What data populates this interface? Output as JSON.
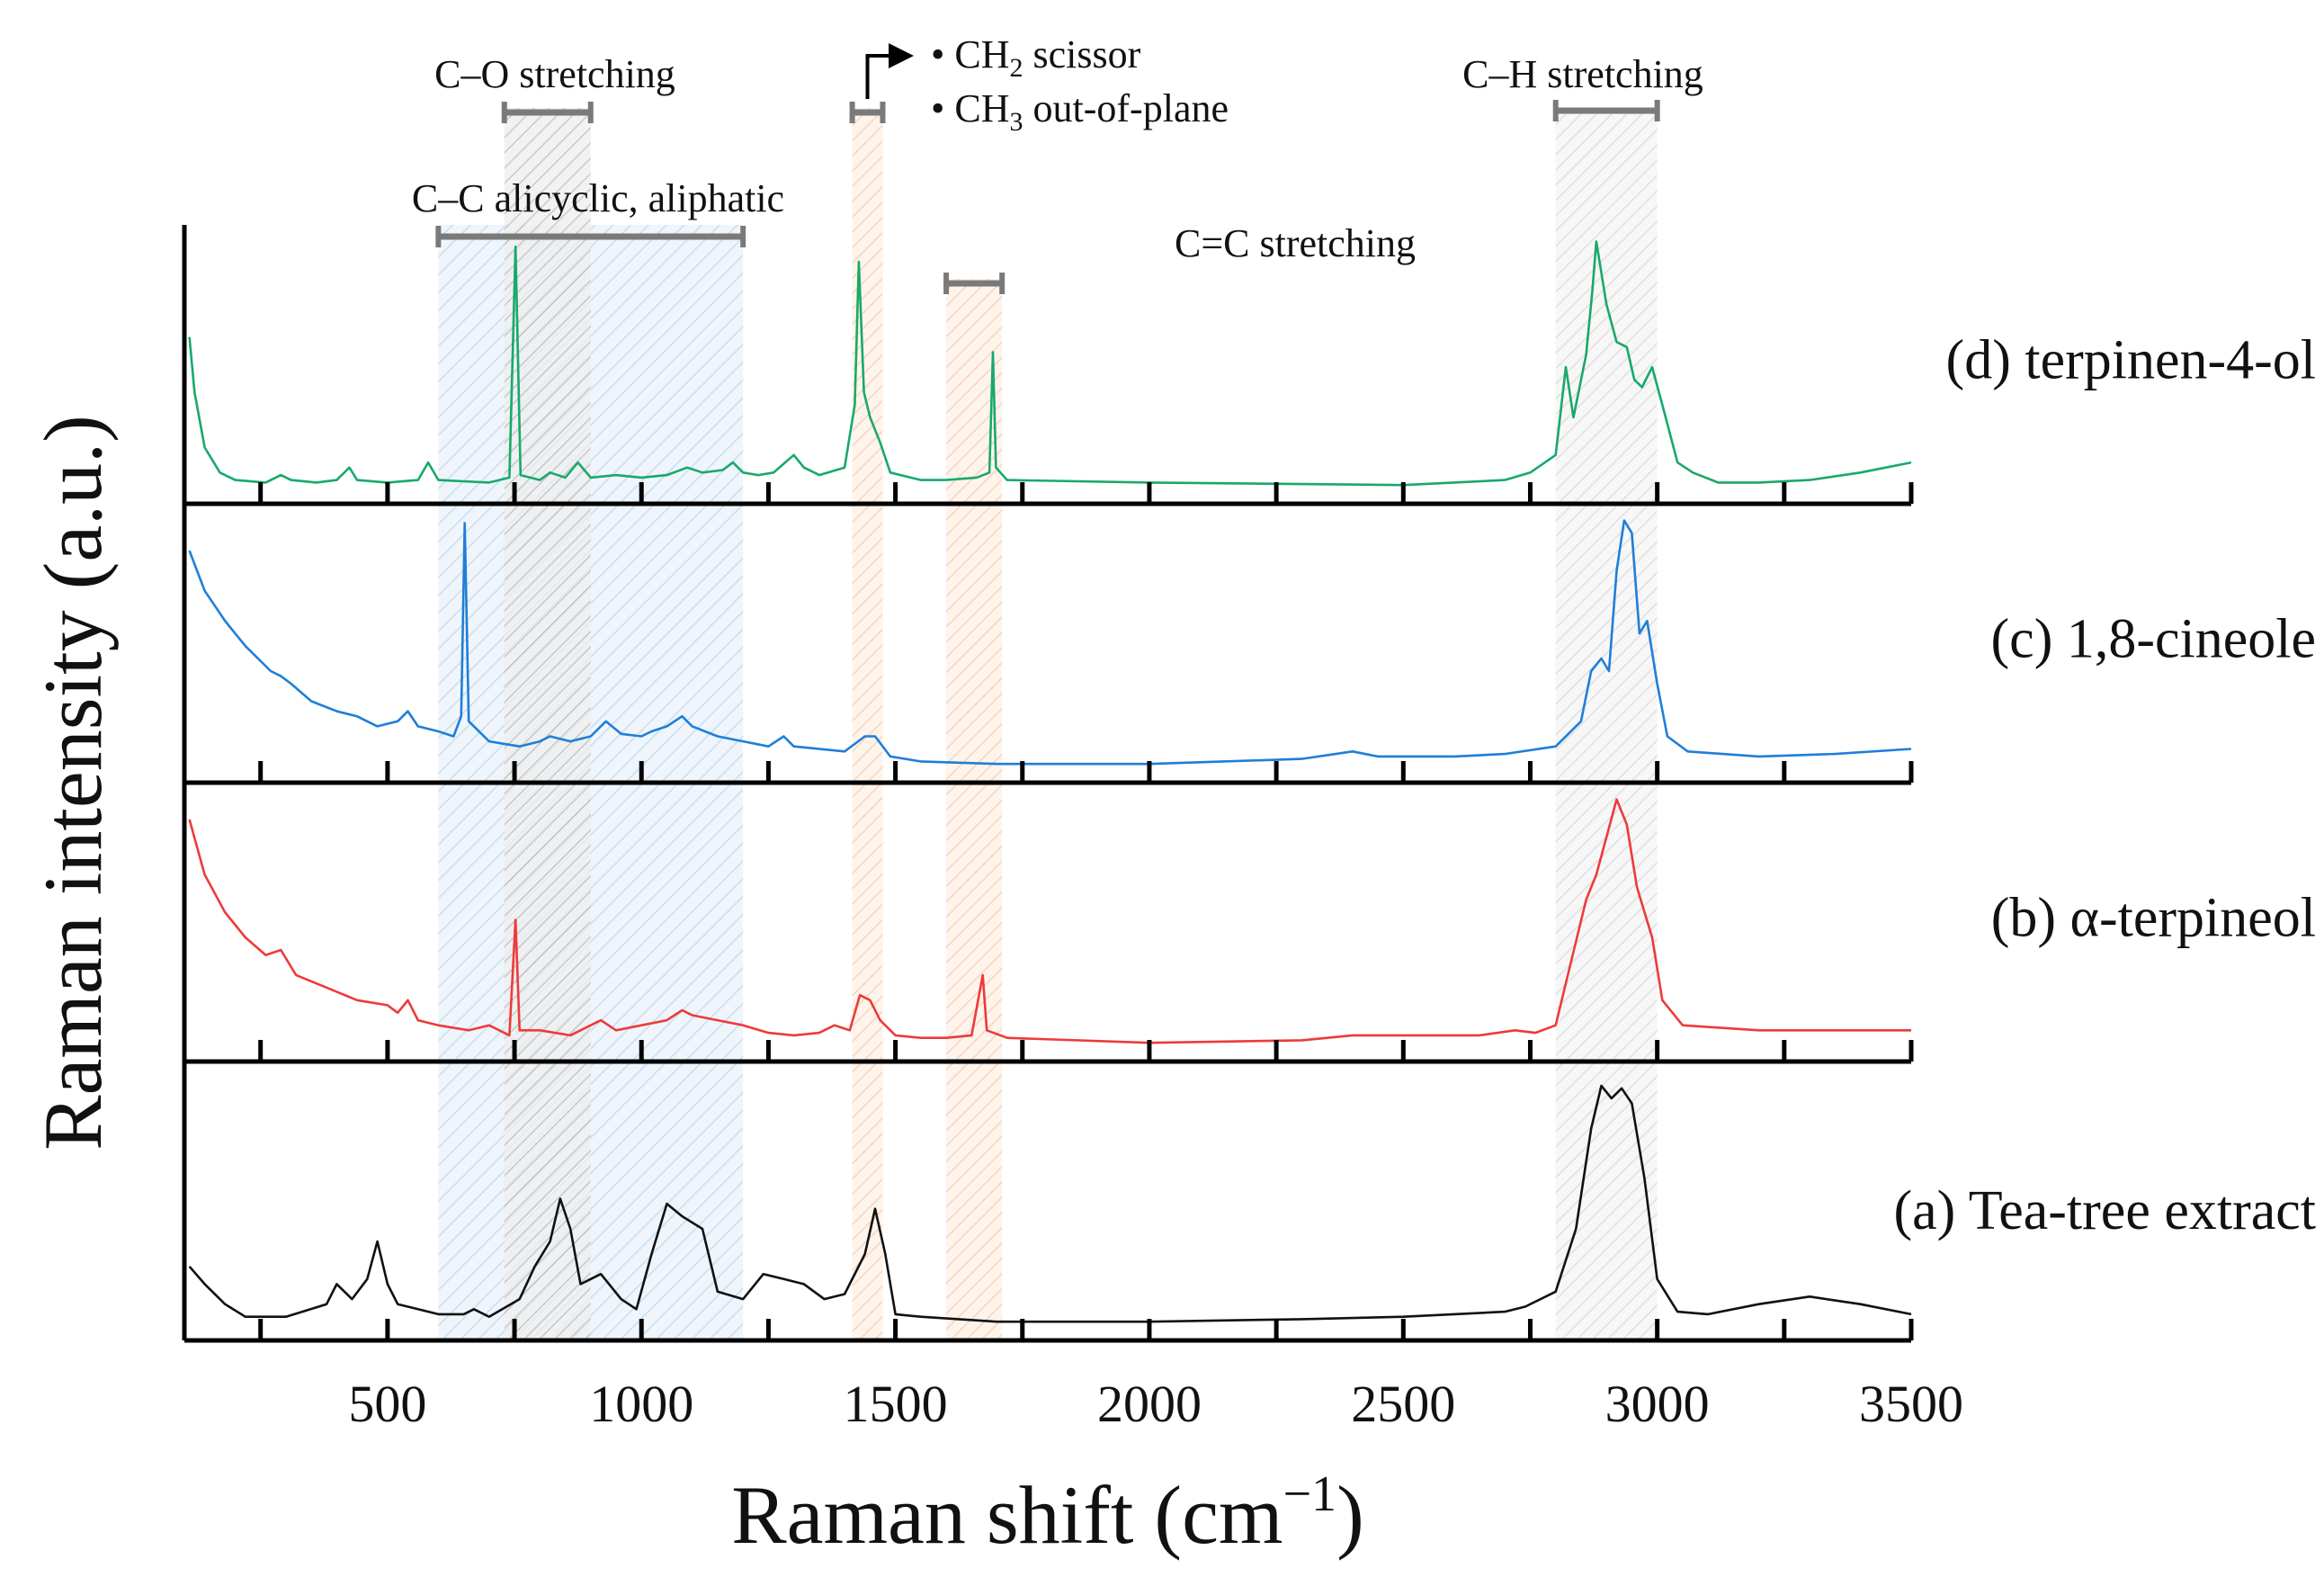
{
  "chart_data": {
    "type": "line",
    "title": "",
    "xlabel": "Raman shift (cm",
    "xlabel_sup": "−1",
    "xlabel_close": ")",
    "ylabel": "Raman intensity (a.u.)",
    "xlim": [
      100,
      3500
    ],
    "xticks": [
      500,
      1000,
      1500,
      2000,
      2500,
      3000,
      3500
    ],
    "minor_ticks": [
      250,
      500,
      750,
      1000,
      1250,
      1500,
      1750,
      2000,
      2250,
      2500,
      2750,
      3000,
      3250,
      3500
    ],
    "panels": [
      {
        "id": "d",
        "label": "(d) terpinen-4-ol",
        "color": "#18a96b",
        "baseline": 0.02,
        "points": [
          [
            110,
            0.62
          ],
          [
            120,
            0.4
          ],
          [
            140,
            0.18
          ],
          [
            170,
            0.08
          ],
          [
            200,
            0.05
          ],
          [
            260,
            0.04
          ],
          [
            290,
            0.07
          ],
          [
            310,
            0.05
          ],
          [
            360,
            0.04
          ],
          [
            400,
            0.05
          ],
          [
            425,
            0.1
          ],
          [
            440,
            0.05
          ],
          [
            500,
            0.04
          ],
          [
            560,
            0.05
          ],
          [
            580,
            0.12
          ],
          [
            600,
            0.05
          ],
          [
            700,
            0.04
          ],
          [
            740,
            0.06
          ],
          [
            752,
            0.98
          ],
          [
            762,
            0.07
          ],
          [
            800,
            0.05
          ],
          [
            820,
            0.08
          ],
          [
            850,
            0.06
          ],
          [
            875,
            0.12
          ],
          [
            900,
            0.06
          ],
          [
            950,
            0.07
          ],
          [
            1000,
            0.06
          ],
          [
            1050,
            0.07
          ],
          [
            1090,
            0.1
          ],
          [
            1120,
            0.08
          ],
          [
            1160,
            0.09
          ],
          [
            1180,
            0.12
          ],
          [
            1200,
            0.08
          ],
          [
            1230,
            0.07
          ],
          [
            1260,
            0.08
          ],
          [
            1300,
            0.15
          ],
          [
            1320,
            0.1
          ],
          [
            1350,
            0.07
          ],
          [
            1400,
            0.1
          ],
          [
            1420,
            0.35
          ],
          [
            1428,
            0.92
          ],
          [
            1438,
            0.4
          ],
          [
            1450,
            0.3
          ],
          [
            1470,
            0.2
          ],
          [
            1490,
            0.08
          ],
          [
            1550,
            0.05
          ],
          [
            1600,
            0.05
          ],
          [
            1660,
            0.06
          ],
          [
            1685,
            0.08
          ],
          [
            1692,
            0.56
          ],
          [
            1698,
            0.1
          ],
          [
            1720,
            0.05
          ],
          [
            2000,
            0.04
          ],
          [
            2500,
            0.03
          ],
          [
            2700,
            0.05
          ],
          [
            2750,
            0.08
          ],
          [
            2800,
            0.15
          ],
          [
            2820,
            0.5
          ],
          [
            2835,
            0.3
          ],
          [
            2860,
            0.55
          ],
          [
            2872,
            0.8
          ],
          [
            2880,
            1.0
          ],
          [
            2900,
            0.75
          ],
          [
            2920,
            0.6
          ],
          [
            2940,
            0.58
          ],
          [
            2955,
            0.45
          ],
          [
            2970,
            0.42
          ],
          [
            2990,
            0.5
          ],
          [
            3010,
            0.35
          ],
          [
            3040,
            0.12
          ],
          [
            3070,
            0.08
          ],
          [
            3120,
            0.04
          ],
          [
            3200,
            0.04
          ],
          [
            3300,
            0.05
          ],
          [
            3400,
            0.08
          ],
          [
            3500,
            0.12
          ]
        ]
      },
      {
        "id": "c",
        "label": "(c) 1,8-cineole",
        "color": "#1e7fd8",
        "baseline": 0.02,
        "points": [
          [
            110,
            0.88
          ],
          [
            140,
            0.72
          ],
          [
            180,
            0.6
          ],
          [
            220,
            0.5
          ],
          [
            270,
            0.4
          ],
          [
            290,
            0.38
          ],
          [
            310,
            0.35
          ],
          [
            350,
            0.28
          ],
          [
            400,
            0.24
          ],
          [
            440,
            0.22
          ],
          [
            480,
            0.18
          ],
          [
            520,
            0.2
          ],
          [
            540,
            0.24
          ],
          [
            560,
            0.18
          ],
          [
            600,
            0.16
          ],
          [
            630,
            0.14
          ],
          [
            645,
            0.22
          ],
          [
            652,
            0.99
          ],
          [
            660,
            0.2
          ],
          [
            700,
            0.12
          ],
          [
            760,
            0.1
          ],
          [
            800,
            0.12
          ],
          [
            820,
            0.14
          ],
          [
            860,
            0.12
          ],
          [
            900,
            0.14
          ],
          [
            930,
            0.2
          ],
          [
            960,
            0.15
          ],
          [
            1000,
            0.14
          ],
          [
            1020,
            0.16
          ],
          [
            1050,
            0.18
          ],
          [
            1080,
            0.22
          ],
          [
            1100,
            0.18
          ],
          [
            1150,
            0.14
          ],
          [
            1200,
            0.12
          ],
          [
            1250,
            0.1
          ],
          [
            1280,
            0.14
          ],
          [
            1300,
            0.1
          ],
          [
            1400,
            0.08
          ],
          [
            1440,
            0.14
          ],
          [
            1460,
            0.14
          ],
          [
            1490,
            0.06
          ],
          [
            1550,
            0.04
          ],
          [
            1700,
            0.03
          ],
          [
            2000,
            0.03
          ],
          [
            2300,
            0.05
          ],
          [
            2400,
            0.08
          ],
          [
            2450,
            0.06
          ],
          [
            2600,
            0.06
          ],
          [
            2700,
            0.07
          ],
          [
            2800,
            0.1
          ],
          [
            2850,
            0.2
          ],
          [
            2870,
            0.4
          ],
          [
            2890,
            0.45
          ],
          [
            2905,
            0.4
          ],
          [
            2920,
            0.8
          ],
          [
            2935,
            1.0
          ],
          [
            2950,
            0.95
          ],
          [
            2965,
            0.55
          ],
          [
            2980,
            0.6
          ],
          [
            3000,
            0.35
          ],
          [
            3020,
            0.14
          ],
          [
            3060,
            0.08
          ],
          [
            3200,
            0.06
          ],
          [
            3350,
            0.07
          ],
          [
            3500,
            0.09
          ]
        ]
      },
      {
        "id": "b",
        "label": "(b) α-terpineol",
        "color": "#ee3a3a",
        "baseline": 0.02,
        "points": [
          [
            110,
            0.92
          ],
          [
            140,
            0.7
          ],
          [
            180,
            0.55
          ],
          [
            220,
            0.45
          ],
          [
            260,
            0.38
          ],
          [
            290,
            0.4
          ],
          [
            320,
            0.3
          ],
          [
            380,
            0.25
          ],
          [
            440,
            0.2
          ],
          [
            500,
            0.18
          ],
          [
            520,
            0.15
          ],
          [
            540,
            0.2
          ],
          [
            560,
            0.12
          ],
          [
            600,
            0.1
          ],
          [
            660,
            0.08
          ],
          [
            700,
            0.1
          ],
          [
            740,
            0.06
          ],
          [
            752,
            0.52
          ],
          [
            760,
            0.08
          ],
          [
            800,
            0.08
          ],
          [
            860,
            0.06
          ],
          [
            920,
            0.12
          ],
          [
            950,
            0.08
          ],
          [
            1000,
            0.1
          ],
          [
            1050,
            0.12
          ],
          [
            1080,
            0.16
          ],
          [
            1100,
            0.14
          ],
          [
            1150,
            0.12
          ],
          [
            1200,
            0.1
          ],
          [
            1250,
            0.07
          ],
          [
            1300,
            0.06
          ],
          [
            1350,
            0.07
          ],
          [
            1380,
            0.1
          ],
          [
            1410,
            0.08
          ],
          [
            1430,
            0.22
          ],
          [
            1450,
            0.2
          ],
          [
            1470,
            0.12
          ],
          [
            1500,
            0.06
          ],
          [
            1550,
            0.05
          ],
          [
            1600,
            0.05
          ],
          [
            1650,
            0.06
          ],
          [
            1672,
            0.3
          ],
          [
            1680,
            0.08
          ],
          [
            1720,
            0.05
          ],
          [
            2000,
            0.03
          ],
          [
            2300,
            0.04
          ],
          [
            2400,
            0.06
          ],
          [
            2500,
            0.06
          ],
          [
            2650,
            0.06
          ],
          [
            2720,
            0.08
          ],
          [
            2760,
            0.07
          ],
          [
            2800,
            0.1
          ],
          [
            2830,
            0.35
          ],
          [
            2860,
            0.6
          ],
          [
            2880,
            0.7
          ],
          [
            2900,
            0.85
          ],
          [
            2920,
            1.0
          ],
          [
            2940,
            0.9
          ],
          [
            2960,
            0.65
          ],
          [
            2975,
            0.55
          ],
          [
            2990,
            0.45
          ],
          [
            3010,
            0.2
          ],
          [
            3050,
            0.1
          ],
          [
            3200,
            0.08
          ],
          [
            3350,
            0.08
          ],
          [
            3500,
            0.08
          ]
        ]
      },
      {
        "id": "a",
        "label": "(a) Tea-tree extract",
        "color": "#111111",
        "baseline": 0.02,
        "points": [
          [
            110,
            0.25
          ],
          [
            140,
            0.18
          ],
          [
            180,
            0.1
          ],
          [
            220,
            0.05
          ],
          [
            300,
            0.05
          ],
          [
            380,
            0.1
          ],
          [
            400,
            0.18
          ],
          [
            430,
            0.12
          ],
          [
            460,
            0.2
          ],
          [
            480,
            0.35
          ],
          [
            500,
            0.18
          ],
          [
            520,
            0.1
          ],
          [
            560,
            0.08
          ],
          [
            600,
            0.06
          ],
          [
            650,
            0.06
          ],
          [
            670,
            0.08
          ],
          [
            700,
            0.05
          ],
          [
            760,
            0.12
          ],
          [
            790,
            0.25
          ],
          [
            820,
            0.35
          ],
          [
            840,
            0.52
          ],
          [
            860,
            0.4
          ],
          [
            880,
            0.18
          ],
          [
            920,
            0.22
          ],
          [
            960,
            0.12
          ],
          [
            990,
            0.08
          ],
          [
            1020,
            0.3
          ],
          [
            1050,
            0.5
          ],
          [
            1080,
            0.45
          ],
          [
            1120,
            0.4
          ],
          [
            1150,
            0.15
          ],
          [
            1200,
            0.12
          ],
          [
            1240,
            0.22
          ],
          [
            1280,
            0.2
          ],
          [
            1320,
            0.18
          ],
          [
            1360,
            0.12
          ],
          [
            1400,
            0.14
          ],
          [
            1440,
            0.3
          ],
          [
            1460,
            0.48
          ],
          [
            1480,
            0.3
          ],
          [
            1500,
            0.06
          ],
          [
            1550,
            0.05
          ],
          [
            1700,
            0.03
          ],
          [
            2000,
            0.03
          ],
          [
            2300,
            0.04
          ],
          [
            2500,
            0.05
          ],
          [
            2700,
            0.07
          ],
          [
            2740,
            0.09
          ],
          [
            2800,
            0.15
          ],
          [
            2840,
            0.4
          ],
          [
            2870,
            0.8
          ],
          [
            2890,
            0.97
          ],
          [
            2910,
            0.92
          ],
          [
            2930,
            0.96
          ],
          [
            2950,
            0.9
          ],
          [
            2975,
            0.6
          ],
          [
            3000,
            0.2
          ],
          [
            3040,
            0.07
          ],
          [
            3100,
            0.06
          ],
          [
            3200,
            0.1
          ],
          [
            3300,
            0.13
          ],
          [
            3400,
            0.1
          ],
          [
            3500,
            0.06
          ]
        ]
      }
    ],
    "regions": [
      {
        "name": "C–C alicyclic, aliphatic",
        "range": [
          600,
          1200
        ],
        "color": "#bcd8ef"
      },
      {
        "name": "C–O stretching",
        "range": [
          730,
          900
        ],
        "color": "#b5b5b5"
      },
      {
        "name": "CH2 / CH3",
        "range": [
          1415,
          1475
        ],
        "color": "#f6c8a8"
      },
      {
        "name": "C=C stretching",
        "range": [
          1600,
          1710
        ],
        "color": "#f6c8a8"
      },
      {
        "name": "C–H stretching",
        "range": [
          2800,
          3000
        ],
        "color": "#cfcfcf"
      }
    ],
    "annotations": [
      {
        "text": "C–O stretching",
        "bracket": [
          730,
          900
        ]
      },
      {
        "text": "C–C alicyclic, aliphatic",
        "bracket": [
          600,
          1200
        ]
      },
      {
        "text": "C=C stretching",
        "bracket": [
          1600,
          1710
        ]
      },
      {
        "text": "C–H stretching",
        "bracket": [
          2800,
          3000
        ]
      },
      {
        "bracket": [
          1415,
          1475
        ]
      }
    ],
    "bullets": [
      {
        "prefix": "• CH",
        "sub": "2",
        "suffix": " scissor"
      },
      {
        "prefix": "• CH",
        "sub": "3",
        "suffix": " out-of-plane"
      }
    ]
  }
}
